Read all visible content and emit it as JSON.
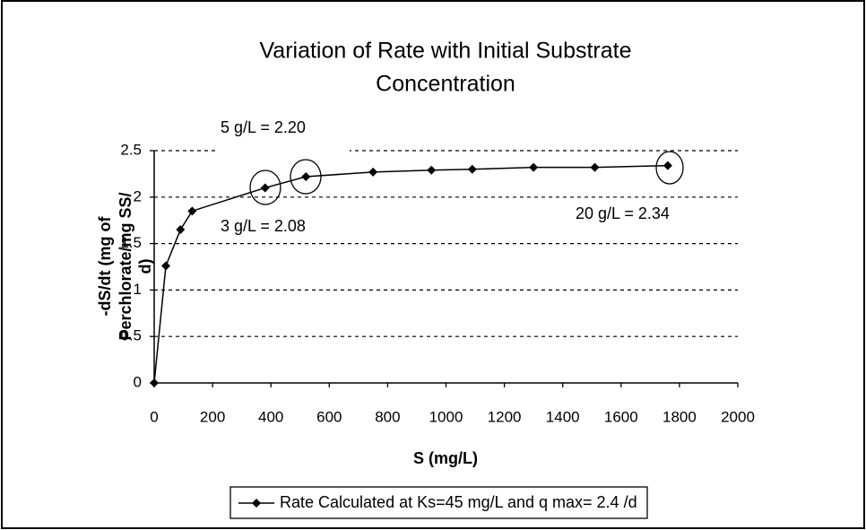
{
  "chart_data": {
    "type": "line",
    "title": [
      "Variation of Rate with Initial Substrate",
      "Concentration"
    ],
    "xlabel": "S (mg/L)",
    "ylabel": [
      "-dS/dt (mg of",
      "Perchlorate/mg SS/",
      "d)"
    ],
    "x": [
      0,
      40,
      90,
      130,
      380,
      520,
      750,
      950,
      1090,
      1300,
      1510,
      1760
    ],
    "series": [
      {
        "name": "Rate Calculated at Ks=45 mg/L and q max= 2.4 /d",
        "color": "#000000",
        "values": [
          0,
          1.26,
          1.65,
          1.85,
          2.1,
          2.22,
          2.27,
          2.29,
          2.3,
          2.32,
          2.32,
          2.34
        ]
      }
    ],
    "annotations": [
      "5 g/L = 2.20",
      "3 g/L = 2.08",
      "20 g/L = 2.34"
    ],
    "xlim": [
      0,
      2000
    ],
    "xticks": [
      0,
      200,
      400,
      600,
      800,
      1000,
      1200,
      1400,
      1600,
      1800,
      2000
    ],
    "ylim": [
      0,
      2.5
    ],
    "yticks": [
      0,
      0.5,
      1,
      1.5,
      2,
      2.5
    ],
    "grid": true
  }
}
